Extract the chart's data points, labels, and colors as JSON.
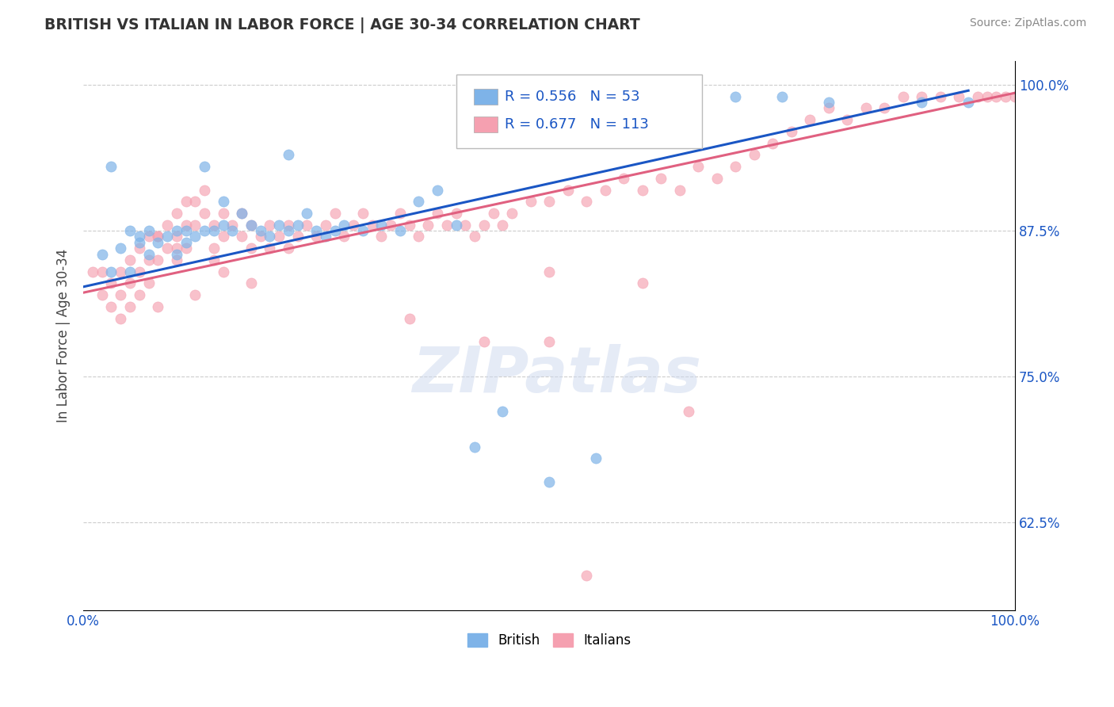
{
  "title": "BRITISH VS ITALIAN IN LABOR FORCE | AGE 30-34 CORRELATION CHART",
  "source": "Source: ZipAtlas.com",
  "ylabel": "In Labor Force | Age 30-34",
  "xlim": [
    0.0,
    1.0
  ],
  "ylim": [
    0.55,
    1.02
  ],
  "ytick_positions": [
    0.625,
    0.75,
    0.875,
    1.0
  ],
  "ytick_labels": [
    "62.5%",
    "75.0%",
    "87.5%",
    "100.0%"
  ],
  "xtick_positions": [
    0.0,
    0.1,
    0.2,
    0.3,
    0.4,
    0.5,
    0.6,
    0.7,
    0.8,
    0.9,
    1.0
  ],
  "xtick_labels": [
    "0.0%",
    "",
    "",
    "",
    "",
    "",
    "",
    "",
    "",
    "",
    "100.0%"
  ],
  "british_color": "#7eb3e8",
  "italian_color": "#f5a0b0",
  "british_line_color": "#1a56c4",
  "italian_line_color": "#e06080",
  "british_R": 0.556,
  "british_N": 53,
  "italian_R": 0.677,
  "italian_N": 113,
  "grid_color": "#cccccc",
  "british_x": [
    0.02,
    0.03,
    0.04,
    0.05,
    0.05,
    0.06,
    0.06,
    0.07,
    0.07,
    0.08,
    0.09,
    0.1,
    0.1,
    0.11,
    0.11,
    0.12,
    0.13,
    0.14,
    0.15,
    0.15,
    0.16,
    0.17,
    0.18,
    0.19,
    0.2,
    0.21,
    0.22,
    0.23,
    0.24,
    0.25,
    0.26,
    0.27,
    0.28,
    0.3,
    0.32,
    0.34,
    0.36,
    0.38,
    0.4,
    0.42,
    0.45,
    0.5,
    0.55,
    0.6,
    0.65,
    0.7,
    0.75,
    0.8,
    0.9,
    0.95,
    0.03,
    0.13,
    0.22
  ],
  "british_y": [
    0.855,
    0.84,
    0.86,
    0.84,
    0.875,
    0.865,
    0.87,
    0.855,
    0.875,
    0.865,
    0.87,
    0.875,
    0.855,
    0.865,
    0.875,
    0.87,
    0.875,
    0.875,
    0.88,
    0.9,
    0.875,
    0.89,
    0.88,
    0.875,
    0.87,
    0.88,
    0.875,
    0.88,
    0.89,
    0.875,
    0.87,
    0.875,
    0.88,
    0.875,
    0.88,
    0.875,
    0.9,
    0.91,
    0.88,
    0.69,
    0.72,
    0.66,
    0.68,
    0.99,
    0.99,
    0.99,
    0.99,
    0.985,
    0.985,
    0.985,
    0.93,
    0.93,
    0.94
  ],
  "italian_x": [
    0.01,
    0.02,
    0.02,
    0.03,
    0.03,
    0.04,
    0.04,
    0.05,
    0.05,
    0.05,
    0.06,
    0.06,
    0.07,
    0.07,
    0.07,
    0.08,
    0.08,
    0.09,
    0.09,
    0.1,
    0.1,
    0.1,
    0.11,
    0.11,
    0.11,
    0.12,
    0.12,
    0.13,
    0.13,
    0.14,
    0.14,
    0.15,
    0.15,
    0.16,
    0.17,
    0.17,
    0.18,
    0.18,
    0.19,
    0.2,
    0.2,
    0.21,
    0.22,
    0.22,
    0.23,
    0.24,
    0.25,
    0.26,
    0.27,
    0.28,
    0.29,
    0.3,
    0.31,
    0.32,
    0.33,
    0.34,
    0.35,
    0.36,
    0.37,
    0.38,
    0.39,
    0.4,
    0.41,
    0.42,
    0.43,
    0.44,
    0.45,
    0.46,
    0.48,
    0.5,
    0.52,
    0.54,
    0.56,
    0.58,
    0.6,
    0.62,
    0.64,
    0.66,
    0.68,
    0.7,
    0.72,
    0.74,
    0.76,
    0.78,
    0.8,
    0.82,
    0.84,
    0.86,
    0.88,
    0.9,
    0.92,
    0.94,
    0.96,
    0.97,
    0.98,
    0.99,
    1.0,
    0.5,
    0.6,
    0.65,
    0.43,
    0.35,
    0.5,
    0.54,
    0.18,
    0.15,
    0.14,
    0.1,
    0.08,
    0.06,
    0.04,
    0.08,
    0.12
  ],
  "italian_y": [
    0.84,
    0.84,
    0.82,
    0.83,
    0.81,
    0.84,
    0.82,
    0.85,
    0.83,
    0.81,
    0.86,
    0.84,
    0.87,
    0.85,
    0.83,
    0.87,
    0.85,
    0.88,
    0.86,
    0.89,
    0.87,
    0.85,
    0.9,
    0.88,
    0.86,
    0.9,
    0.88,
    0.91,
    0.89,
    0.88,
    0.86,
    0.89,
    0.87,
    0.88,
    0.89,
    0.87,
    0.88,
    0.86,
    0.87,
    0.88,
    0.86,
    0.87,
    0.88,
    0.86,
    0.87,
    0.88,
    0.87,
    0.88,
    0.89,
    0.87,
    0.88,
    0.89,
    0.88,
    0.87,
    0.88,
    0.89,
    0.88,
    0.87,
    0.88,
    0.89,
    0.88,
    0.89,
    0.88,
    0.87,
    0.88,
    0.89,
    0.88,
    0.89,
    0.9,
    0.9,
    0.91,
    0.9,
    0.91,
    0.92,
    0.91,
    0.92,
    0.91,
    0.93,
    0.92,
    0.93,
    0.94,
    0.95,
    0.96,
    0.97,
    0.98,
    0.97,
    0.98,
    0.98,
    0.99,
    0.99,
    0.99,
    0.99,
    0.99,
    0.99,
    0.99,
    0.99,
    0.99,
    0.84,
    0.83,
    0.72,
    0.78,
    0.8,
    0.78,
    0.58,
    0.83,
    0.84,
    0.85,
    0.86,
    0.87,
    0.82,
    0.8,
    0.81,
    0.82
  ],
  "british_line_x": [
    0.0,
    0.95
  ],
  "british_line_y": [
    0.827,
    0.995
  ],
  "italian_line_x": [
    0.0,
    1.0
  ],
  "italian_line_y": [
    0.822,
    0.993
  ]
}
